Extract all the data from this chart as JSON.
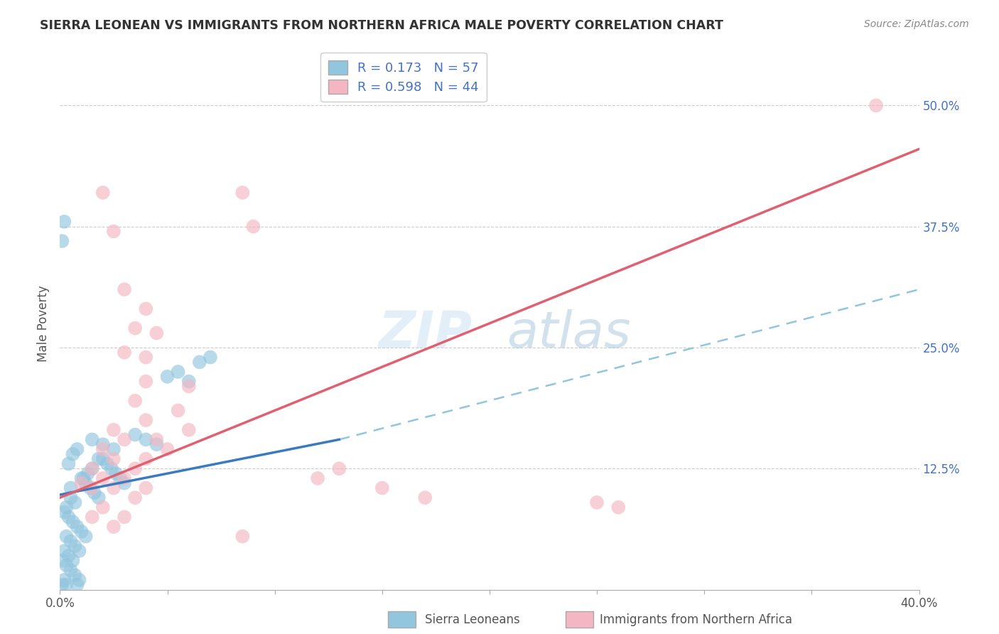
{
  "title": "SIERRA LEONEAN VS IMMIGRANTS FROM NORTHERN AFRICA MALE POVERTY CORRELATION CHART",
  "source": "Source: ZipAtlas.com",
  "ylabel": "Male Poverty",
  "xlim": [
    0.0,
    0.4
  ],
  "ylim": [
    0.0,
    0.55
  ],
  "ytick_positions": [
    0.125,
    0.25,
    0.375,
    0.5
  ],
  "ytick_labels": [
    "12.5%",
    "25.0%",
    "37.5%",
    "50.0%"
  ],
  "blue_R": 0.173,
  "blue_N": 57,
  "pink_R": 0.598,
  "pink_N": 44,
  "blue_color": "#92c5de",
  "pink_color": "#f4b6c2",
  "blue_line_color": "#3a7bbf",
  "pink_line_color": "#e06070",
  "dashed_line_color": "#92c5de",
  "background_color": "#ffffff",
  "grid_color": "#cccccc",
  "watermark_color": "#cde3f0",
  "blue_scatter": [
    [
      0.005,
      0.105
    ],
    [
      0.005,
      0.095
    ],
    [
      0.007,
      0.09
    ],
    [
      0.003,
      0.085
    ],
    [
      0.002,
      0.08
    ],
    [
      0.004,
      0.075
    ],
    [
      0.006,
      0.07
    ],
    [
      0.008,
      0.065
    ],
    [
      0.01,
      0.06
    ],
    [
      0.012,
      0.055
    ],
    [
      0.003,
      0.055
    ],
    [
      0.005,
      0.05
    ],
    [
      0.007,
      0.045
    ],
    [
      0.009,
      0.04
    ],
    [
      0.002,
      0.04
    ],
    [
      0.004,
      0.035
    ],
    [
      0.006,
      0.03
    ],
    [
      0.001,
      0.03
    ],
    [
      0.003,
      0.025
    ],
    [
      0.005,
      0.02
    ],
    [
      0.007,
      0.015
    ],
    [
      0.009,
      0.01
    ],
    [
      0.002,
      0.01
    ],
    [
      0.001,
      0.005
    ],
    [
      0.003,
      0.005
    ],
    [
      0.008,
      0.005
    ],
    [
      0.01,
      0.115
    ],
    [
      0.012,
      0.11
    ],
    [
      0.014,
      0.105
    ],
    [
      0.016,
      0.1
    ],
    [
      0.018,
      0.095
    ],
    [
      0.015,
      0.125
    ],
    [
      0.013,
      0.12
    ],
    [
      0.011,
      0.115
    ],
    [
      0.02,
      0.135
    ],
    [
      0.022,
      0.13
    ],
    [
      0.018,
      0.135
    ],
    [
      0.024,
      0.125
    ],
    [
      0.026,
      0.12
    ],
    [
      0.028,
      0.115
    ],
    [
      0.03,
      0.11
    ],
    [
      0.025,
      0.145
    ],
    [
      0.02,
      0.15
    ],
    [
      0.015,
      0.155
    ],
    [
      0.035,
      0.16
    ],
    [
      0.04,
      0.155
    ],
    [
      0.045,
      0.15
    ],
    [
      0.05,
      0.22
    ],
    [
      0.055,
      0.225
    ],
    [
      0.06,
      0.215
    ],
    [
      0.07,
      0.24
    ],
    [
      0.065,
      0.235
    ],
    [
      0.008,
      0.145
    ],
    [
      0.006,
      0.14
    ],
    [
      0.004,
      0.13
    ],
    [
      0.001,
      0.36
    ],
    [
      0.002,
      0.38
    ]
  ],
  "pink_scatter": [
    [
      0.02,
      0.41
    ],
    [
      0.085,
      0.41
    ],
    [
      0.025,
      0.37
    ],
    [
      0.09,
      0.375
    ],
    [
      0.03,
      0.31
    ],
    [
      0.04,
      0.29
    ],
    [
      0.035,
      0.27
    ],
    [
      0.045,
      0.265
    ],
    [
      0.03,
      0.245
    ],
    [
      0.04,
      0.24
    ],
    [
      0.04,
      0.215
    ],
    [
      0.06,
      0.21
    ],
    [
      0.035,
      0.195
    ],
    [
      0.055,
      0.185
    ],
    [
      0.04,
      0.175
    ],
    [
      0.06,
      0.165
    ],
    [
      0.025,
      0.165
    ],
    [
      0.045,
      0.155
    ],
    [
      0.03,
      0.155
    ],
    [
      0.05,
      0.145
    ],
    [
      0.02,
      0.145
    ],
    [
      0.04,
      0.135
    ],
    [
      0.025,
      0.135
    ],
    [
      0.035,
      0.125
    ],
    [
      0.015,
      0.125
    ],
    [
      0.03,
      0.115
    ],
    [
      0.02,
      0.115
    ],
    [
      0.04,
      0.105
    ],
    [
      0.01,
      0.11
    ],
    [
      0.025,
      0.105
    ],
    [
      0.015,
      0.105
    ],
    [
      0.035,
      0.095
    ],
    [
      0.02,
      0.085
    ],
    [
      0.03,
      0.075
    ],
    [
      0.015,
      0.075
    ],
    [
      0.025,
      0.065
    ],
    [
      0.12,
      0.115
    ],
    [
      0.13,
      0.125
    ],
    [
      0.15,
      0.105
    ],
    [
      0.17,
      0.095
    ],
    [
      0.25,
      0.09
    ],
    [
      0.26,
      0.085
    ],
    [
      0.38,
      0.5
    ],
    [
      0.085,
      0.055
    ]
  ]
}
